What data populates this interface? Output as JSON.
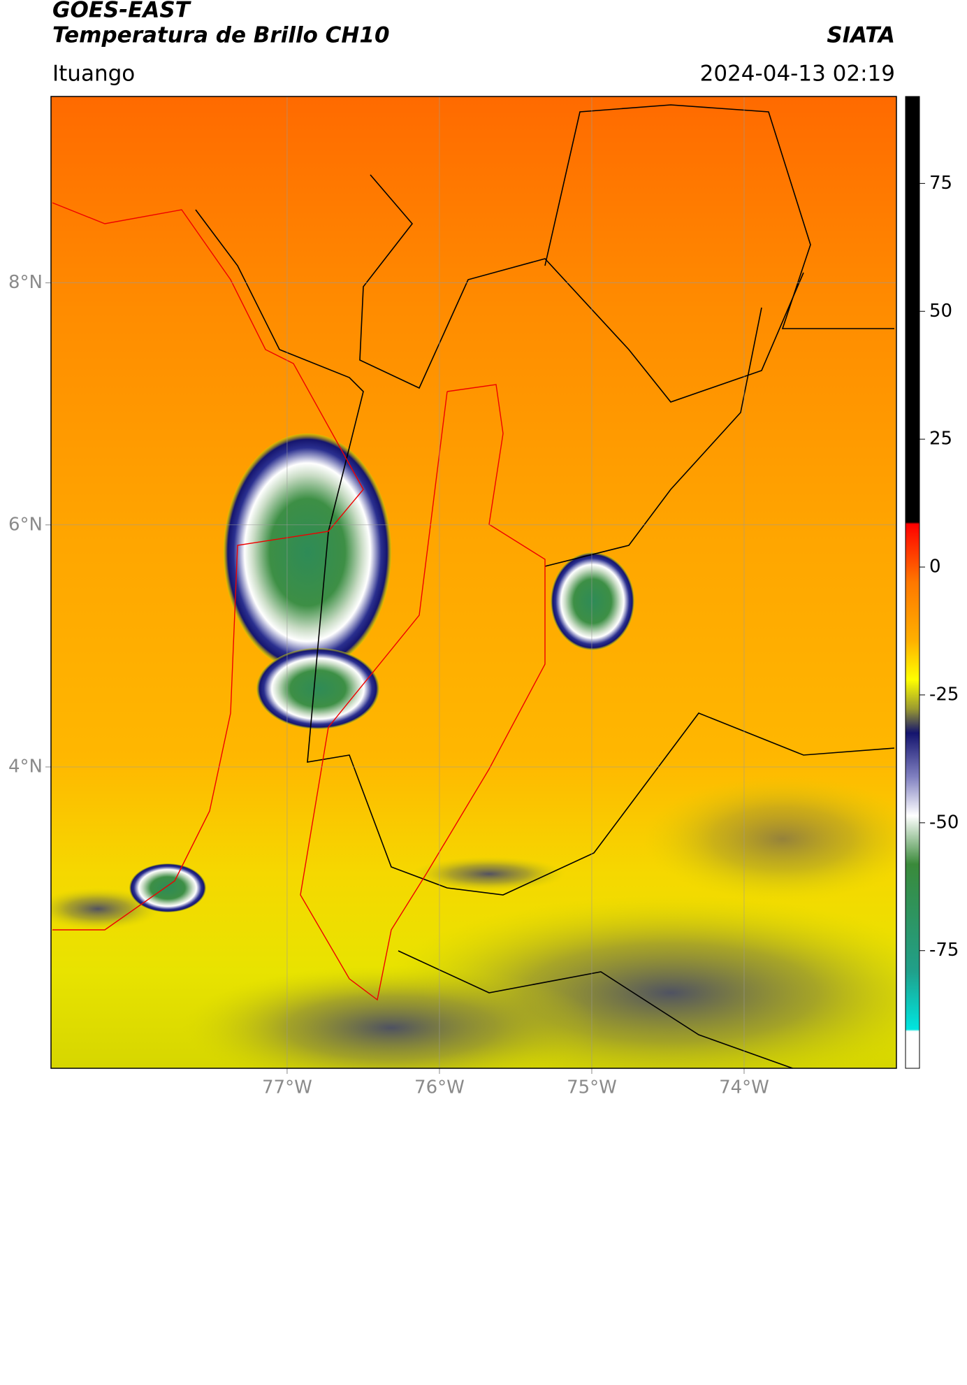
{
  "header": {
    "title": "GOES-EAST",
    "subtitle": "Temperatura de Brillo CH10",
    "source": "SIATA",
    "location": "Ituango",
    "timestamp": "2024-04-13 02:19"
  },
  "map": {
    "xlim": [
      -78.55,
      -73.0
    ],
    "ylim": [
      1.51,
      9.54
    ],
    "xticks": [
      {
        "value": -77,
        "label": "77°W"
      },
      {
        "value": -76,
        "label": "76°W"
      },
      {
        "value": -75,
        "label": "75°W"
      },
      {
        "value": -74,
        "label": "74°W"
      }
    ],
    "yticks": [
      {
        "value": 8,
        "label": "8°N"
      },
      {
        "value": 6,
        "label": "6°N"
      },
      {
        "value": 4,
        "label": "4°N"
      }
    ],
    "grid": true
  },
  "colorbar": {
    "lim": [
      -98,
      92
    ],
    "ticks": [
      75,
      50,
      25,
      0,
      -25,
      -50,
      -75
    ]
  }
}
